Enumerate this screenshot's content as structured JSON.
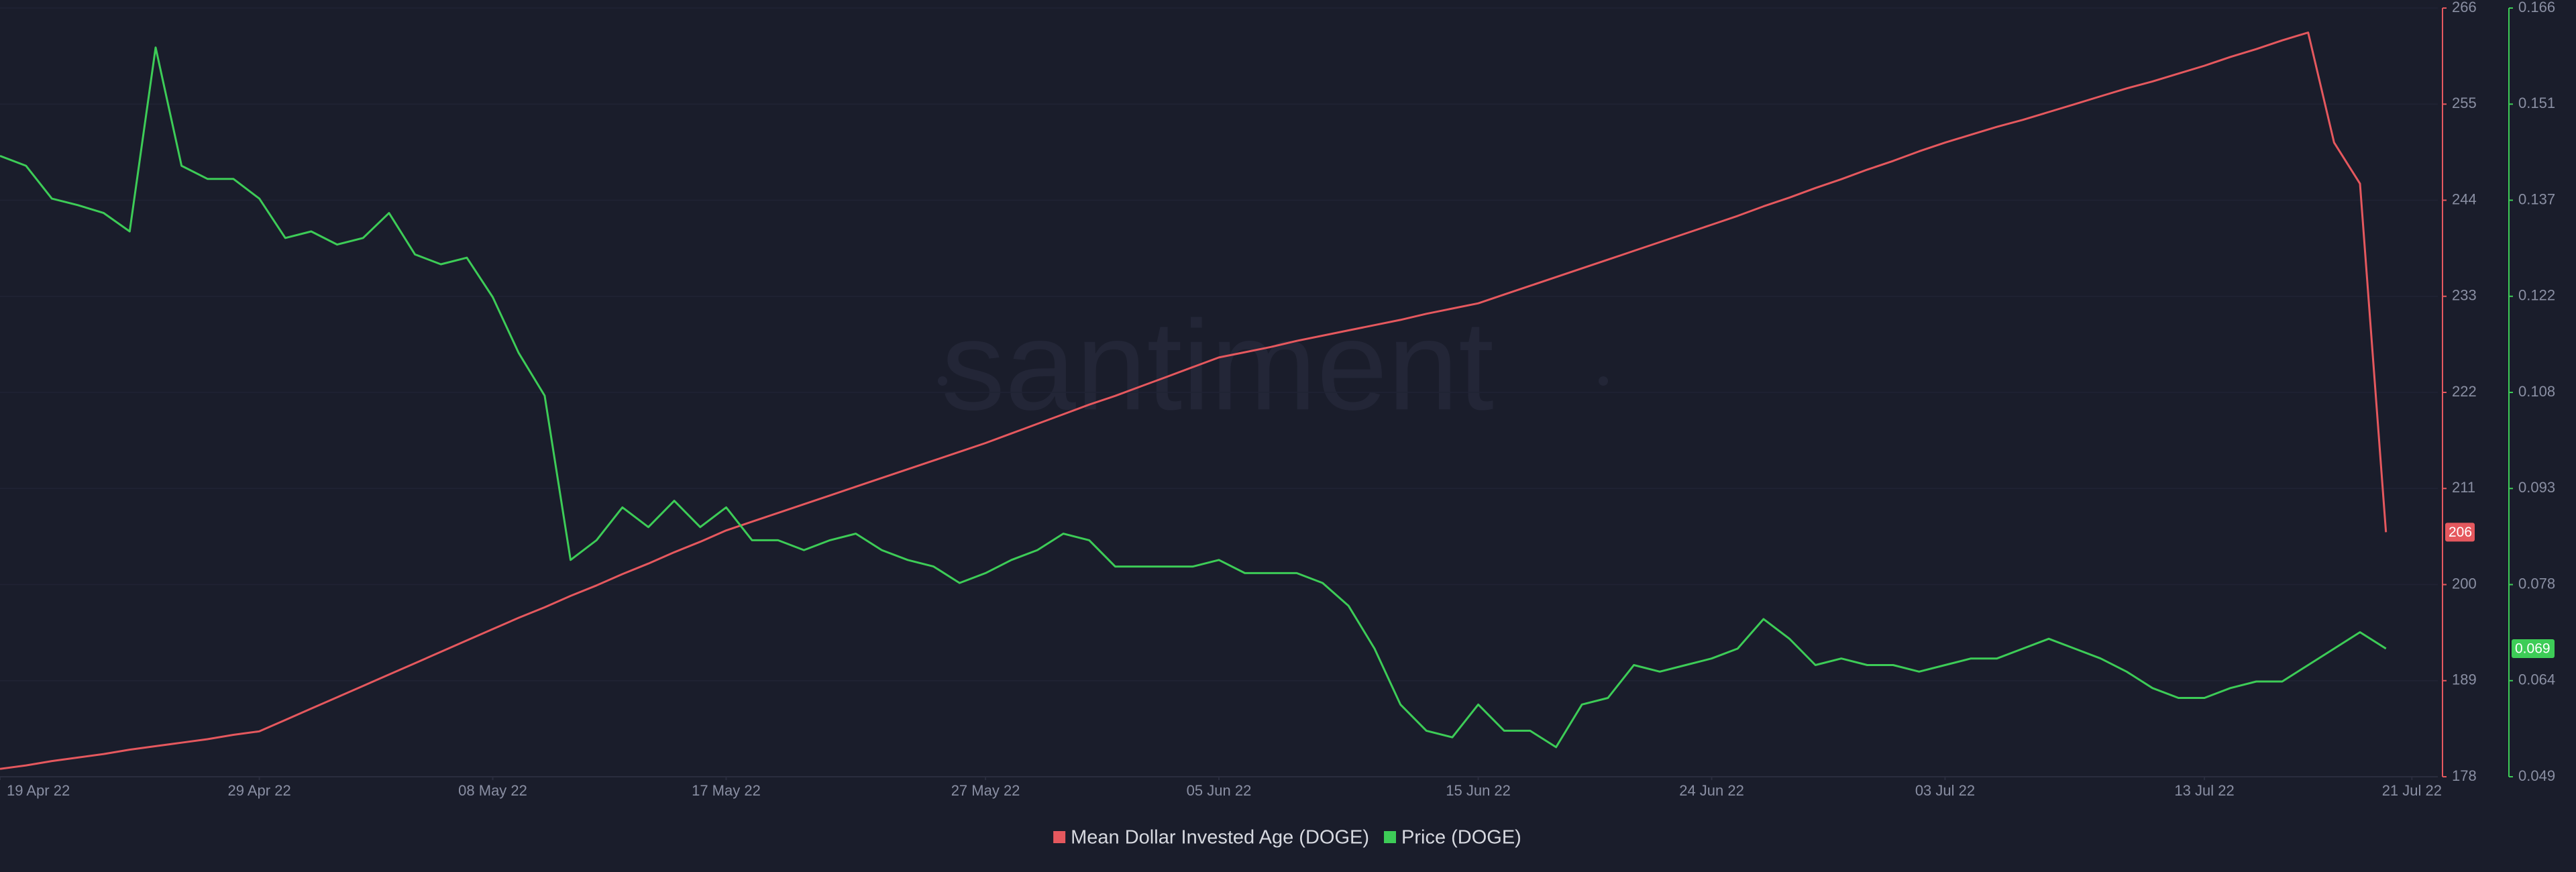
{
  "chart_data": {
    "type": "line",
    "watermark": "santiment",
    "xlim": [
      "2022-04-19",
      "2022-07-22"
    ],
    "xticks": [
      {
        "value": "2022-04-19",
        "label": "19 Apr 22"
      },
      {
        "value": "2022-04-29",
        "label": "29 Apr 22"
      },
      {
        "value": "2022-05-08",
        "label": "08 May 22"
      },
      {
        "value": "2022-05-17",
        "label": "17 May 22"
      },
      {
        "value": "2022-05-27",
        "label": "27 May 22"
      },
      {
        "value": "2022-06-05",
        "label": "05 Jun 22"
      },
      {
        "value": "2022-06-15",
        "label": "15 Jun 22"
      },
      {
        "value": "2022-06-24",
        "label": "24 Jun 22"
      },
      {
        "value": "2022-07-03",
        "label": "03 Jul 22"
      },
      {
        "value": "2022-07-13",
        "label": "13 Jul 22"
      },
      {
        "value": "2022-07-21",
        "label": "21 Jul 22"
      }
    ],
    "ylim": [
      178,
      266
    ],
    "yticks": [
      178,
      189,
      200,
      211,
      222,
      233,
      244,
      255,
      266
    ],
    "y2lim": [
      0.049,
      0.166
    ],
    "y2ticks": [
      0.049,
      {
        "value": 0.063625,
        "label": "0.064"
      },
      {
        "value": 0.07825,
        "label": "0.078"
      },
      {
        "value": 0.092875,
        "label": "0.093"
      },
      {
        "value": 0.1075,
        "label": "0.108"
      },
      {
        "value": 0.122125,
        "label": "0.122"
      },
      {
        "value": 0.13675,
        "label": "0.137"
      },
      {
        "value": 0.151375,
        "label": "0.151"
      },
      0.166
    ],
    "grid": true,
    "x": [
      "2022-04-19",
      "2022-04-20",
      "2022-04-21",
      "2022-04-22",
      "2022-04-23",
      "2022-04-24",
      "2022-04-25",
      "2022-04-26",
      "2022-04-27",
      "2022-04-28",
      "2022-04-29",
      "2022-04-30",
      "2022-05-01",
      "2022-05-02",
      "2022-05-03",
      "2022-05-04",
      "2022-05-05",
      "2022-05-06",
      "2022-05-07",
      "2022-05-08",
      "2022-05-09",
      "2022-05-10",
      "2022-05-11",
      "2022-05-12",
      "2022-05-13",
      "2022-05-14",
      "2022-05-15",
      "2022-05-16",
      "2022-05-17",
      "2022-05-18",
      "2022-05-19",
      "2022-05-20",
      "2022-05-21",
      "2022-05-22",
      "2022-05-23",
      "2022-05-24",
      "2022-05-25",
      "2022-05-26",
      "2022-05-27",
      "2022-05-28",
      "2022-05-29",
      "2022-05-30",
      "2022-05-31",
      "2022-06-01",
      "2022-06-02",
      "2022-06-03",
      "2022-06-04",
      "2022-06-05",
      "2022-06-06",
      "2022-06-07",
      "2022-06-08",
      "2022-06-09",
      "2022-06-10",
      "2022-06-11",
      "2022-06-12",
      "2022-06-13",
      "2022-06-14",
      "2022-06-15",
      "2022-06-16",
      "2022-06-17",
      "2022-06-18",
      "2022-06-19",
      "2022-06-20",
      "2022-06-21",
      "2022-06-22",
      "2022-06-23",
      "2022-06-24",
      "2022-06-25",
      "2022-06-26",
      "2022-06-27",
      "2022-06-28",
      "2022-06-29",
      "2022-06-30",
      "2022-07-01",
      "2022-07-02",
      "2022-07-03",
      "2022-07-04",
      "2022-07-05",
      "2022-07-06",
      "2022-07-07",
      "2022-07-08",
      "2022-07-09",
      "2022-07-10",
      "2022-07-11",
      "2022-07-12",
      "2022-07-13",
      "2022-07-14",
      "2022-07-15",
      "2022-07-16",
      "2022-07-17",
      "2022-07-18",
      "2022-07-19",
      "2022-07-20"
    ],
    "series": [
      {
        "name": "Mean Dollar Invested Age (DOGE)",
        "color": "#e5585e",
        "axis": "y",
        "last_label": "206",
        "values": [
          178.9,
          179.3,
          179.8,
          180.2,
          180.6,
          181.1,
          181.5,
          181.9,
          182.3,
          182.8,
          183.2,
          184.5,
          185.8,
          187.1,
          188.4,
          189.7,
          191.0,
          192.3,
          193.6,
          194.9,
          196.2,
          197.4,
          198.7,
          199.9,
          201.2,
          202.4,
          203.7,
          204.9,
          206.2,
          207.2,
          208.2,
          209.2,
          210.2,
          211.2,
          212.2,
          213.2,
          214.2,
          215.2,
          216.2,
          217.3,
          218.4,
          219.5,
          220.6,
          221.6,
          222.7,
          223.8,
          224.9,
          226.0,
          226.6,
          227.2,
          227.9,
          228.5,
          229.1,
          229.7,
          230.3,
          231.0,
          231.6,
          232.2,
          233.2,
          234.2,
          235.2,
          236.2,
          237.2,
          238.2,
          239.2,
          240.2,
          241.2,
          242.2,
          243.3,
          244.3,
          245.4,
          246.4,
          247.5,
          248.5,
          249.6,
          250.6,
          251.5,
          252.4,
          253.2,
          254.1,
          255.0,
          255.9,
          256.8,
          257.6,
          258.5,
          259.4,
          260.4,
          261.3,
          262.3,
          263.2,
          250.6,
          245.9,
          206.0
        ]
      },
      {
        "name": "Price (DOGE)",
        "color": "#3dcc57",
        "axis": "y2",
        "last_label": "0.069",
        "values": [
          0.1435,
          0.142,
          0.137,
          0.136,
          0.1348,
          0.132,
          0.16,
          0.142,
          0.14,
          0.14,
          0.137,
          0.131,
          0.132,
          0.13,
          0.131,
          0.1348,
          0.1285,
          0.127,
          0.128,
          0.122,
          0.1135,
          0.107,
          0.082,
          0.085,
          0.09,
          0.087,
          0.091,
          0.087,
          0.09,
          0.085,
          0.085,
          0.0835,
          0.085,
          0.086,
          0.0835,
          0.082,
          0.081,
          0.0785,
          0.08,
          0.082,
          0.0835,
          0.086,
          0.085,
          0.081,
          0.081,
          0.081,
          0.081,
          0.082,
          0.08,
          0.08,
          0.08,
          0.0785,
          0.075,
          0.0685,
          0.06,
          0.056,
          0.055,
          0.06,
          0.056,
          0.056,
          0.0535,
          0.06,
          0.061,
          0.066,
          0.065,
          0.066,
          0.067,
          0.0685,
          0.073,
          0.07,
          0.066,
          0.067,
          0.066,
          0.066,
          0.065,
          0.066,
          0.067,
          0.067,
          0.0685,
          0.07,
          0.0685,
          0.067,
          0.065,
          0.0625,
          0.061,
          0.061,
          0.0625,
          0.0635,
          0.0635,
          0.066,
          0.0685,
          0.071,
          0.0685
        ]
      }
    ]
  }
}
